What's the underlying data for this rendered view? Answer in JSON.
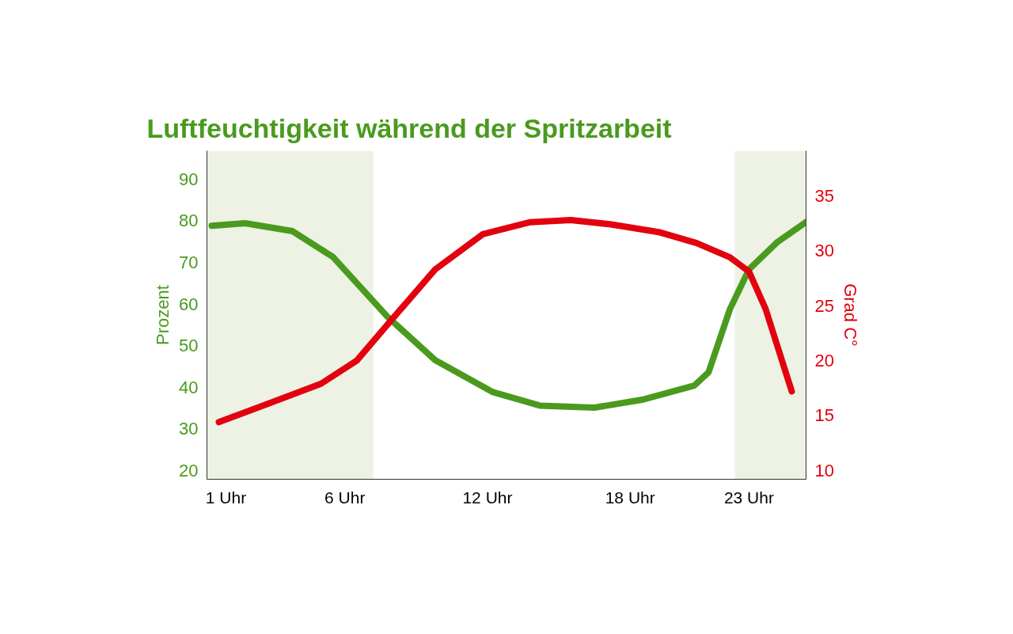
{
  "chart_data": {
    "type": "line",
    "title": "Luftfeuchtigkeit während der Spritzarbeit",
    "ylabel": "Prozent",
    "y2label": "Grad C°",
    "xlim": [
      0.2,
      25.4
    ],
    "xticks": [
      {
        "value": 1,
        "label": "1 Uhr"
      },
      {
        "value": 6,
        "label": "6 Uhr"
      },
      {
        "value": 12,
        "label": "12 Uhr"
      },
      {
        "value": 18,
        "label": "18 Uhr"
      },
      {
        "value": 23,
        "label": "23 Uhr"
      }
    ],
    "ylim": [
      17.9,
      96.8
    ],
    "yticks": [
      20,
      30,
      40,
      50,
      60,
      70,
      80,
      90
    ],
    "y2lim": [
      9.2,
      39.1
    ],
    "y2ticks": [
      10,
      15,
      20,
      25,
      30,
      35
    ],
    "grid": false,
    "line_style": "solid",
    "bands": [
      {
        "axis": "x",
        "from": 0.2,
        "to": 7.2,
        "color": "#edf2e4"
      },
      {
        "axis": "x",
        "from": 22.4,
        "to": 25.4,
        "color": "#edf2e4"
      }
    ],
    "series": [
      {
        "color": "#4a9a1e",
        "x": [
          0.4,
          1.8,
          3.8,
          5.5,
          7.8,
          9.8,
          12.2,
          14.2,
          16.5,
          18.5,
          20.7,
          21.3,
          22.2,
          23.0,
          24.2,
          25.4
        ],
        "values": [
          78.8,
          79.4,
          77.5,
          71.3,
          56.9,
          46.5,
          38.9,
          35.6,
          35.1,
          37.0,
          40.4,
          43.6,
          58.8,
          68.3,
          74.9,
          79.7
        ]
      },
      {
        "color": "#e3000f",
        "axis": "y2",
        "x": [
          0.7,
          2.8,
          5.0,
          6.5,
          7.8,
          9.8,
          11.8,
          13.8,
          15.5,
          17.2,
          19.2,
          20.8,
          22.2,
          23.0,
          23.7,
          24.8
        ],
        "values": [
          14.4,
          16.1,
          17.9,
          20.0,
          23.3,
          28.3,
          31.5,
          32.6,
          32.8,
          32.4,
          31.7,
          30.7,
          29.4,
          28.1,
          24.7,
          17.2
        ]
      }
    ]
  }
}
